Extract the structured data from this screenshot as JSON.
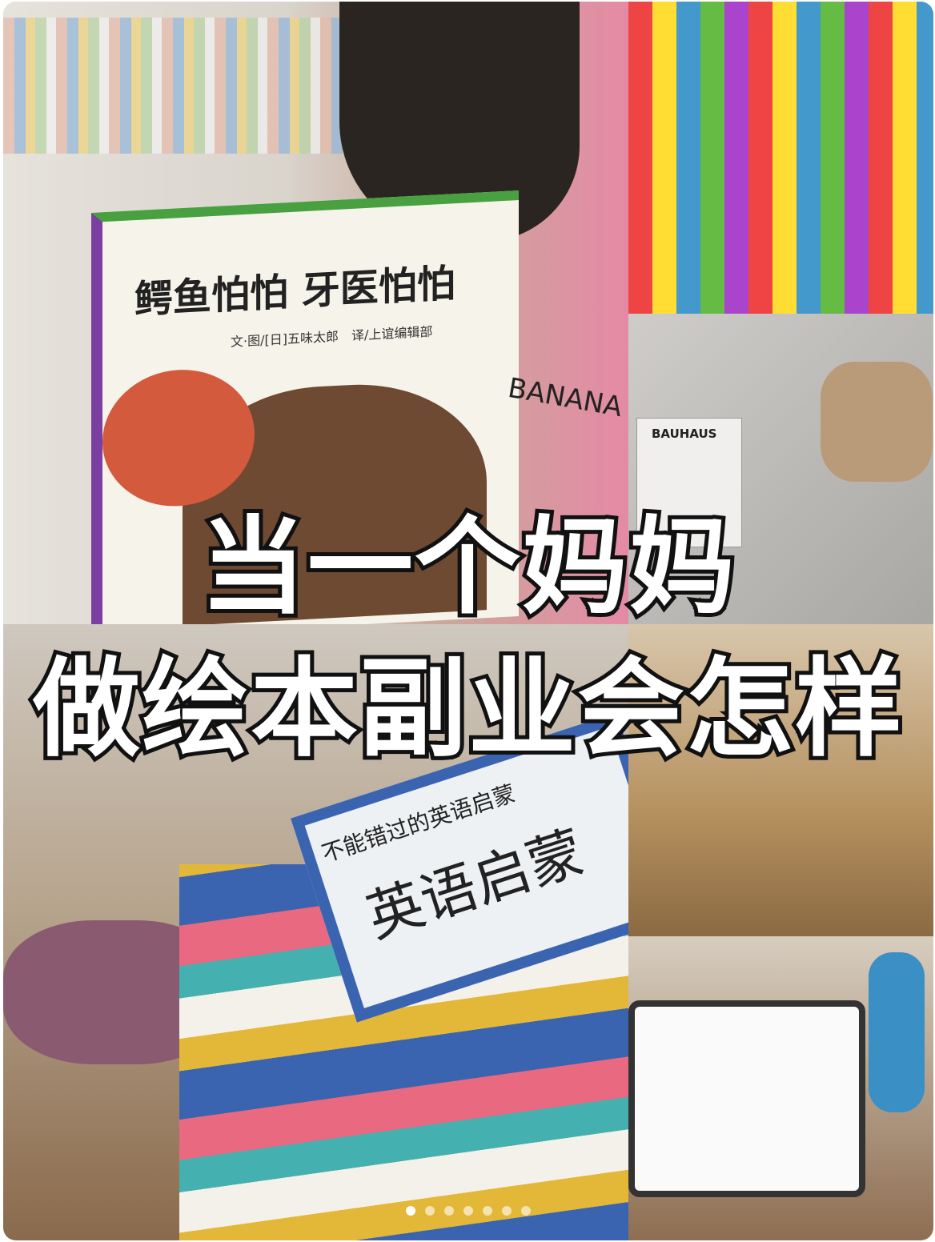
{
  "headline": {
    "line1": "当一个妈妈",
    "line2": "做绘本副业会怎样"
  },
  "photos": {
    "book_title": "鳄鱼怕怕 牙医怕怕",
    "book_author": "文·图/[日]五味太郎　译/上谊编辑部",
    "shirt": "BANANA",
    "magazine": "BAUHAUS",
    "stack_title": "不能错过的英语启蒙",
    "stack_cover": "英语启蒙"
  },
  "carousel": {
    "count": 7,
    "active": 0
  }
}
